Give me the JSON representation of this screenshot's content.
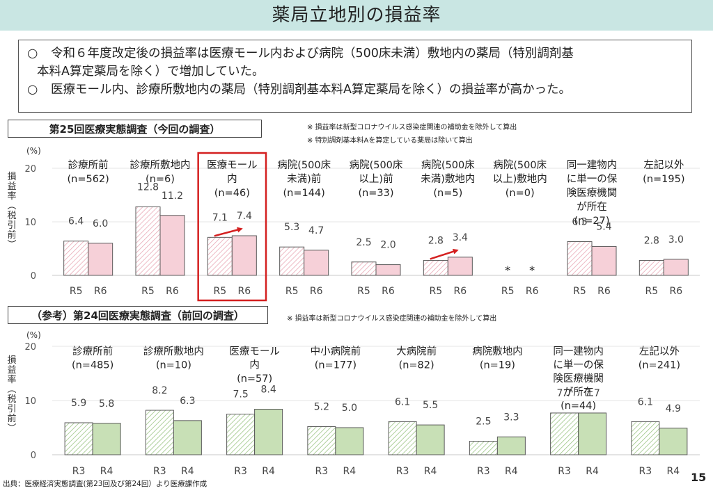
{
  "title": "薬局立地別の損益率",
  "summary": {
    "line1_mark": "○",
    "line1": "令和６年度改定後の損益率は医療モール内および病院（500床未満）敷地内の薬局（特別調剤基",
    "line1_cont": "本料A算定薬局を除く）で増加していた。",
    "line2_mark": "○",
    "line2": "医療モール内、診療所敷地内の薬局（特別調剤基本料A算定薬局を除く）の損益率が高かった。"
  },
  "current_label": "第25回医療実態調査（今回の調査）",
  "previous_label": "（参考）第24回医療実態調査（前回の調査）",
  "notes": {
    "n1": "※ 損益率は新型コロナウイルス感染症関連の補助金を除外して算出",
    "n2": "※ 特別調剤基本料Aを算定している薬局は除いて算出",
    "n3": "※ 損益率は新型コロナウイルス感染症関連の補助金を除外して算出"
  },
  "source": "出典：医療経済実態調査(第23回及び第24回）より医療課作成",
  "page_number": "15",
  "colors": {
    "pink_fill": "#f6d0d8",
    "green_fill": "#c8e0b6",
    "bar_outline": "#5a5a5a",
    "arrow": "#d42020",
    "highlight_box": "#d42020",
    "title_bg": "#c9e6e3"
  },
  "chart_data": [
    {
      "type": "bar",
      "title": "第25回医療実態調査（今回の調査）",
      "unit": "(%)",
      "ylabel": "損益率（税引前）",
      "ylim": [
        0,
        20
      ],
      "yticks": [
        0,
        10,
        20
      ],
      "series_labels": [
        "R5",
        "R6"
      ],
      "missing_marker": "*",
      "highlight": "医療モール内",
      "categories": [
        {
          "name": [
            "診療所前",
            "(n=562)"
          ],
          "values": [
            6.4,
            6.0
          ]
        },
        {
          "name": [
            "診療所敷地内",
            "(n=6)"
          ],
          "values": [
            12.8,
            11.2
          ]
        },
        {
          "name": [
            "医療モール",
            "内",
            "(n=46)"
          ],
          "values": [
            7.1,
            7.4
          ],
          "increase": true
        },
        {
          "name": [
            "病院(500床",
            "未満)前",
            "(n=144)"
          ],
          "values": [
            5.3,
            4.7
          ]
        },
        {
          "name": [
            "病院(500床",
            "以上)前",
            "(n=33)"
          ],
          "values": [
            2.5,
            2.0
          ]
        },
        {
          "name": [
            "病院(500床",
            "未満)敷地内",
            "(n=5)"
          ],
          "values": [
            2.8,
            3.4
          ],
          "increase": true
        },
        {
          "name": [
            "病院(500床",
            "以上)敷地内",
            "(n=0)"
          ],
          "values": [
            null,
            null
          ]
        },
        {
          "name": [
            "同一建物内",
            "に単一の保",
            "険医療機関",
            "が所在",
            "(n=27)"
          ],
          "values": [
            6.3,
            5.4
          ]
        },
        {
          "name": [
            "左記以外",
            "(n=195)"
          ],
          "values": [
            2.8,
            3.0
          ]
        }
      ]
    },
    {
      "type": "bar",
      "title": "（参考）第24回医療実態調査（前回の調査）",
      "unit": "(%)",
      "ylabel": "損益率（税引前）",
      "ylim": [
        0,
        20
      ],
      "yticks": [
        0,
        10,
        20
      ],
      "series_labels": [
        "R3",
        "R4"
      ],
      "categories": [
        {
          "name": [
            "診療所前",
            "(n=485)"
          ],
          "values": [
            5.9,
            5.8
          ]
        },
        {
          "name": [
            "診療所敷地内",
            "(n=10)"
          ],
          "values": [
            8.2,
            6.3
          ]
        },
        {
          "name": [
            "医療モール",
            "内",
            "(n=57)"
          ],
          "values": [
            7.5,
            8.4
          ]
        },
        {
          "name": [
            "中小病院前",
            "(n=177)"
          ],
          "values": [
            5.2,
            5.0
          ]
        },
        {
          "name": [
            "大病院前",
            "(n=82)"
          ],
          "values": [
            6.1,
            5.5
          ]
        },
        {
          "name": [
            "病院敷地内",
            "(n=19)"
          ],
          "values": [
            2.5,
            3.3
          ]
        },
        {
          "name": [
            "同一建物内",
            "に単一の保",
            "険医療機関",
            "が所在",
            "(n=44)"
          ],
          "values": [
            7.7,
            7.7
          ]
        },
        {
          "name": [
            "左記以外",
            "(n=241)"
          ],
          "values": [
            6.1,
            4.9
          ]
        }
      ]
    }
  ]
}
